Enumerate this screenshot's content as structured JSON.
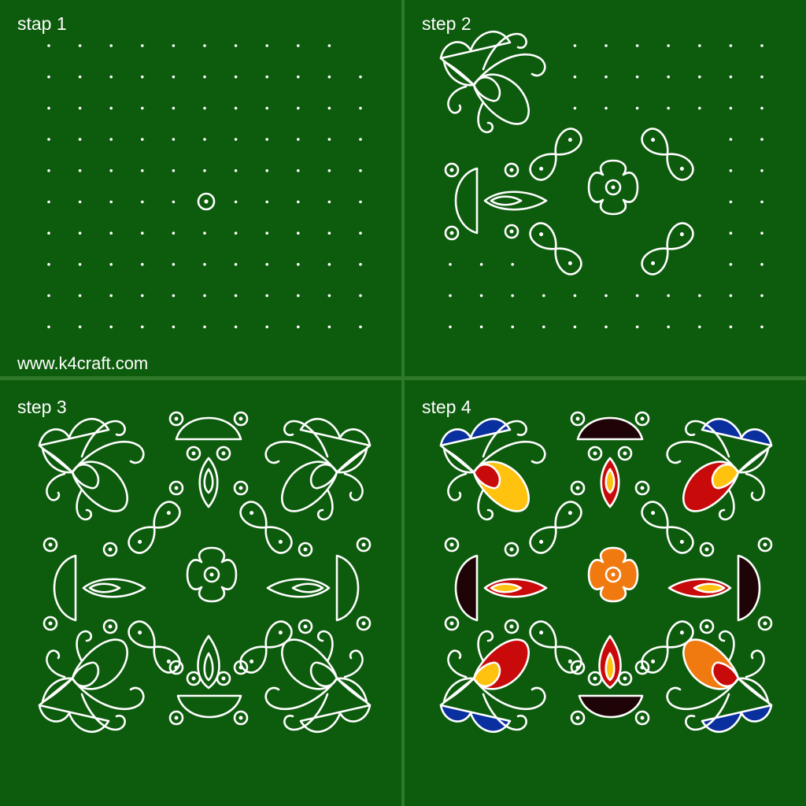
{
  "panels": [
    {
      "label": "stap 1"
    },
    {
      "label": "step 2"
    },
    {
      "label": "step 3"
    },
    {
      "label": "step 4"
    }
  ],
  "watermark": "www.k4craft.com",
  "colors": {
    "background": "#0d5b0d",
    "gutter": "#2f7a2a",
    "line": "#ffffff",
    "blue": "#0a2f9e",
    "red": "#c80a0a",
    "yellow": "#ffc20e",
    "orange": "#f07a10",
    "dark": "#1e0406"
  },
  "grid": {
    "rows": 10,
    "cols": 11
  }
}
